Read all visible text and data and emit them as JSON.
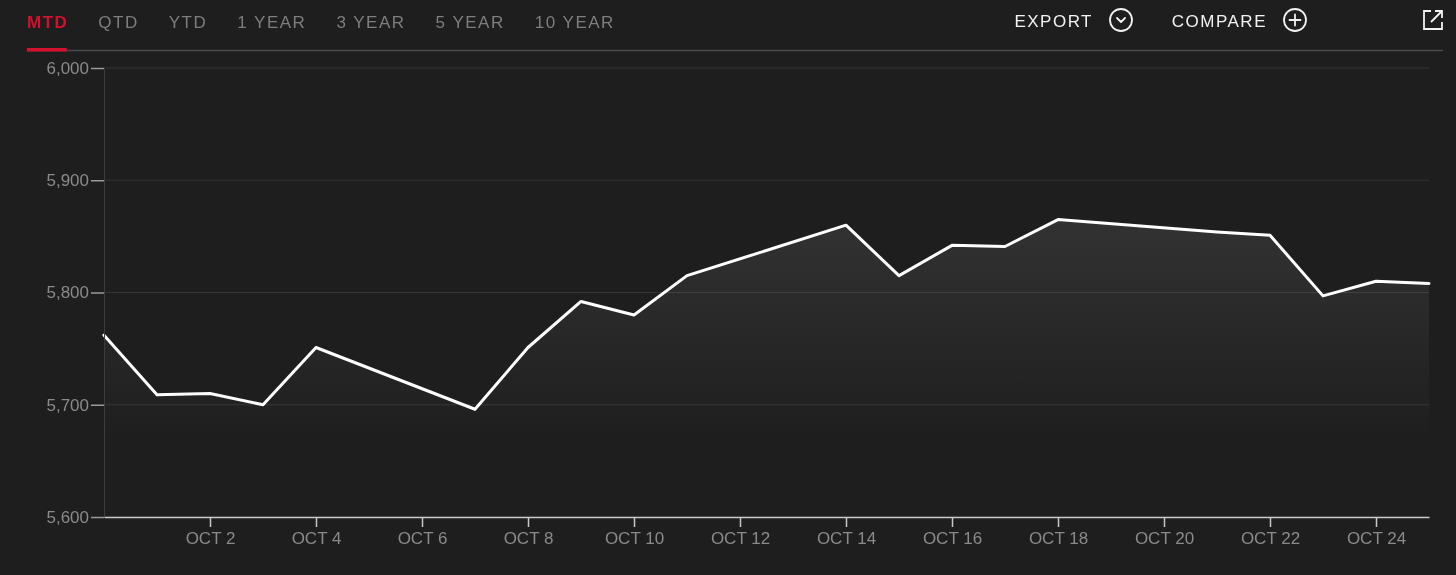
{
  "chart_data": {
    "type": "area",
    "x": [
      "--09-30",
      "--10-01",
      "--10-02",
      "--10-03",
      "--10-04",
      "--10-07",
      "--10-08",
      "--10-09",
      "--10-10",
      "--10-11",
      "--10-14",
      "--10-15",
      "--10-16",
      "--10-17",
      "--10-18",
      "--10-21",
      "--10-22",
      "--10-23",
      "--10-24",
      "--10-25"
    ],
    "values": [
      5762,
      5709,
      5710,
      5700,
      5751,
      5696,
      5751,
      5792,
      5780,
      5815,
      5860,
      5815,
      5842,
      5841,
      5865,
      5854,
      5851,
      5797,
      5810,
      5808
    ],
    "color": "#ffffff",
    "xlim": [
      "--09-30",
      "--10-25"
    ],
    "xticks": [
      {
        "value": "--10-02",
        "label": "OCT 2"
      },
      {
        "value": "--10-04",
        "label": "OCT 4"
      },
      {
        "value": "--10-06",
        "label": "OCT 6"
      },
      {
        "value": "--10-08",
        "label": "OCT 8"
      },
      {
        "value": "--10-10",
        "label": "OCT 10"
      },
      {
        "value": "--10-12",
        "label": "OCT 12"
      },
      {
        "value": "--10-14",
        "label": "OCT 14"
      },
      {
        "value": "--10-16",
        "label": "OCT 16"
      },
      {
        "value": "--10-18",
        "label": "OCT 18"
      },
      {
        "value": "--10-20",
        "label": "OCT 20"
      },
      {
        "value": "--10-22",
        "label": "OCT 22"
      },
      {
        "value": "--10-24",
        "label": "OCT 24"
      }
    ],
    "ylim": [
      5600,
      6000
    ],
    "yticks": [
      {
        "value": 5600,
        "label": "5,600"
      },
      {
        "value": 5700,
        "label": "5,700"
      },
      {
        "value": 5800,
        "label": "5,800"
      },
      {
        "value": 5900,
        "label": "5,900"
      },
      {
        "value": 6000,
        "label": "6,000"
      }
    ],
    "grid": "y",
    "annotations": [
      "MTD",
      "QTD",
      "YTD",
      "1 YEAR",
      "3 YEAR",
      "5 YEAR",
      "10 YEAR",
      "EXPORT",
      "COMPARE"
    ]
  }
}
